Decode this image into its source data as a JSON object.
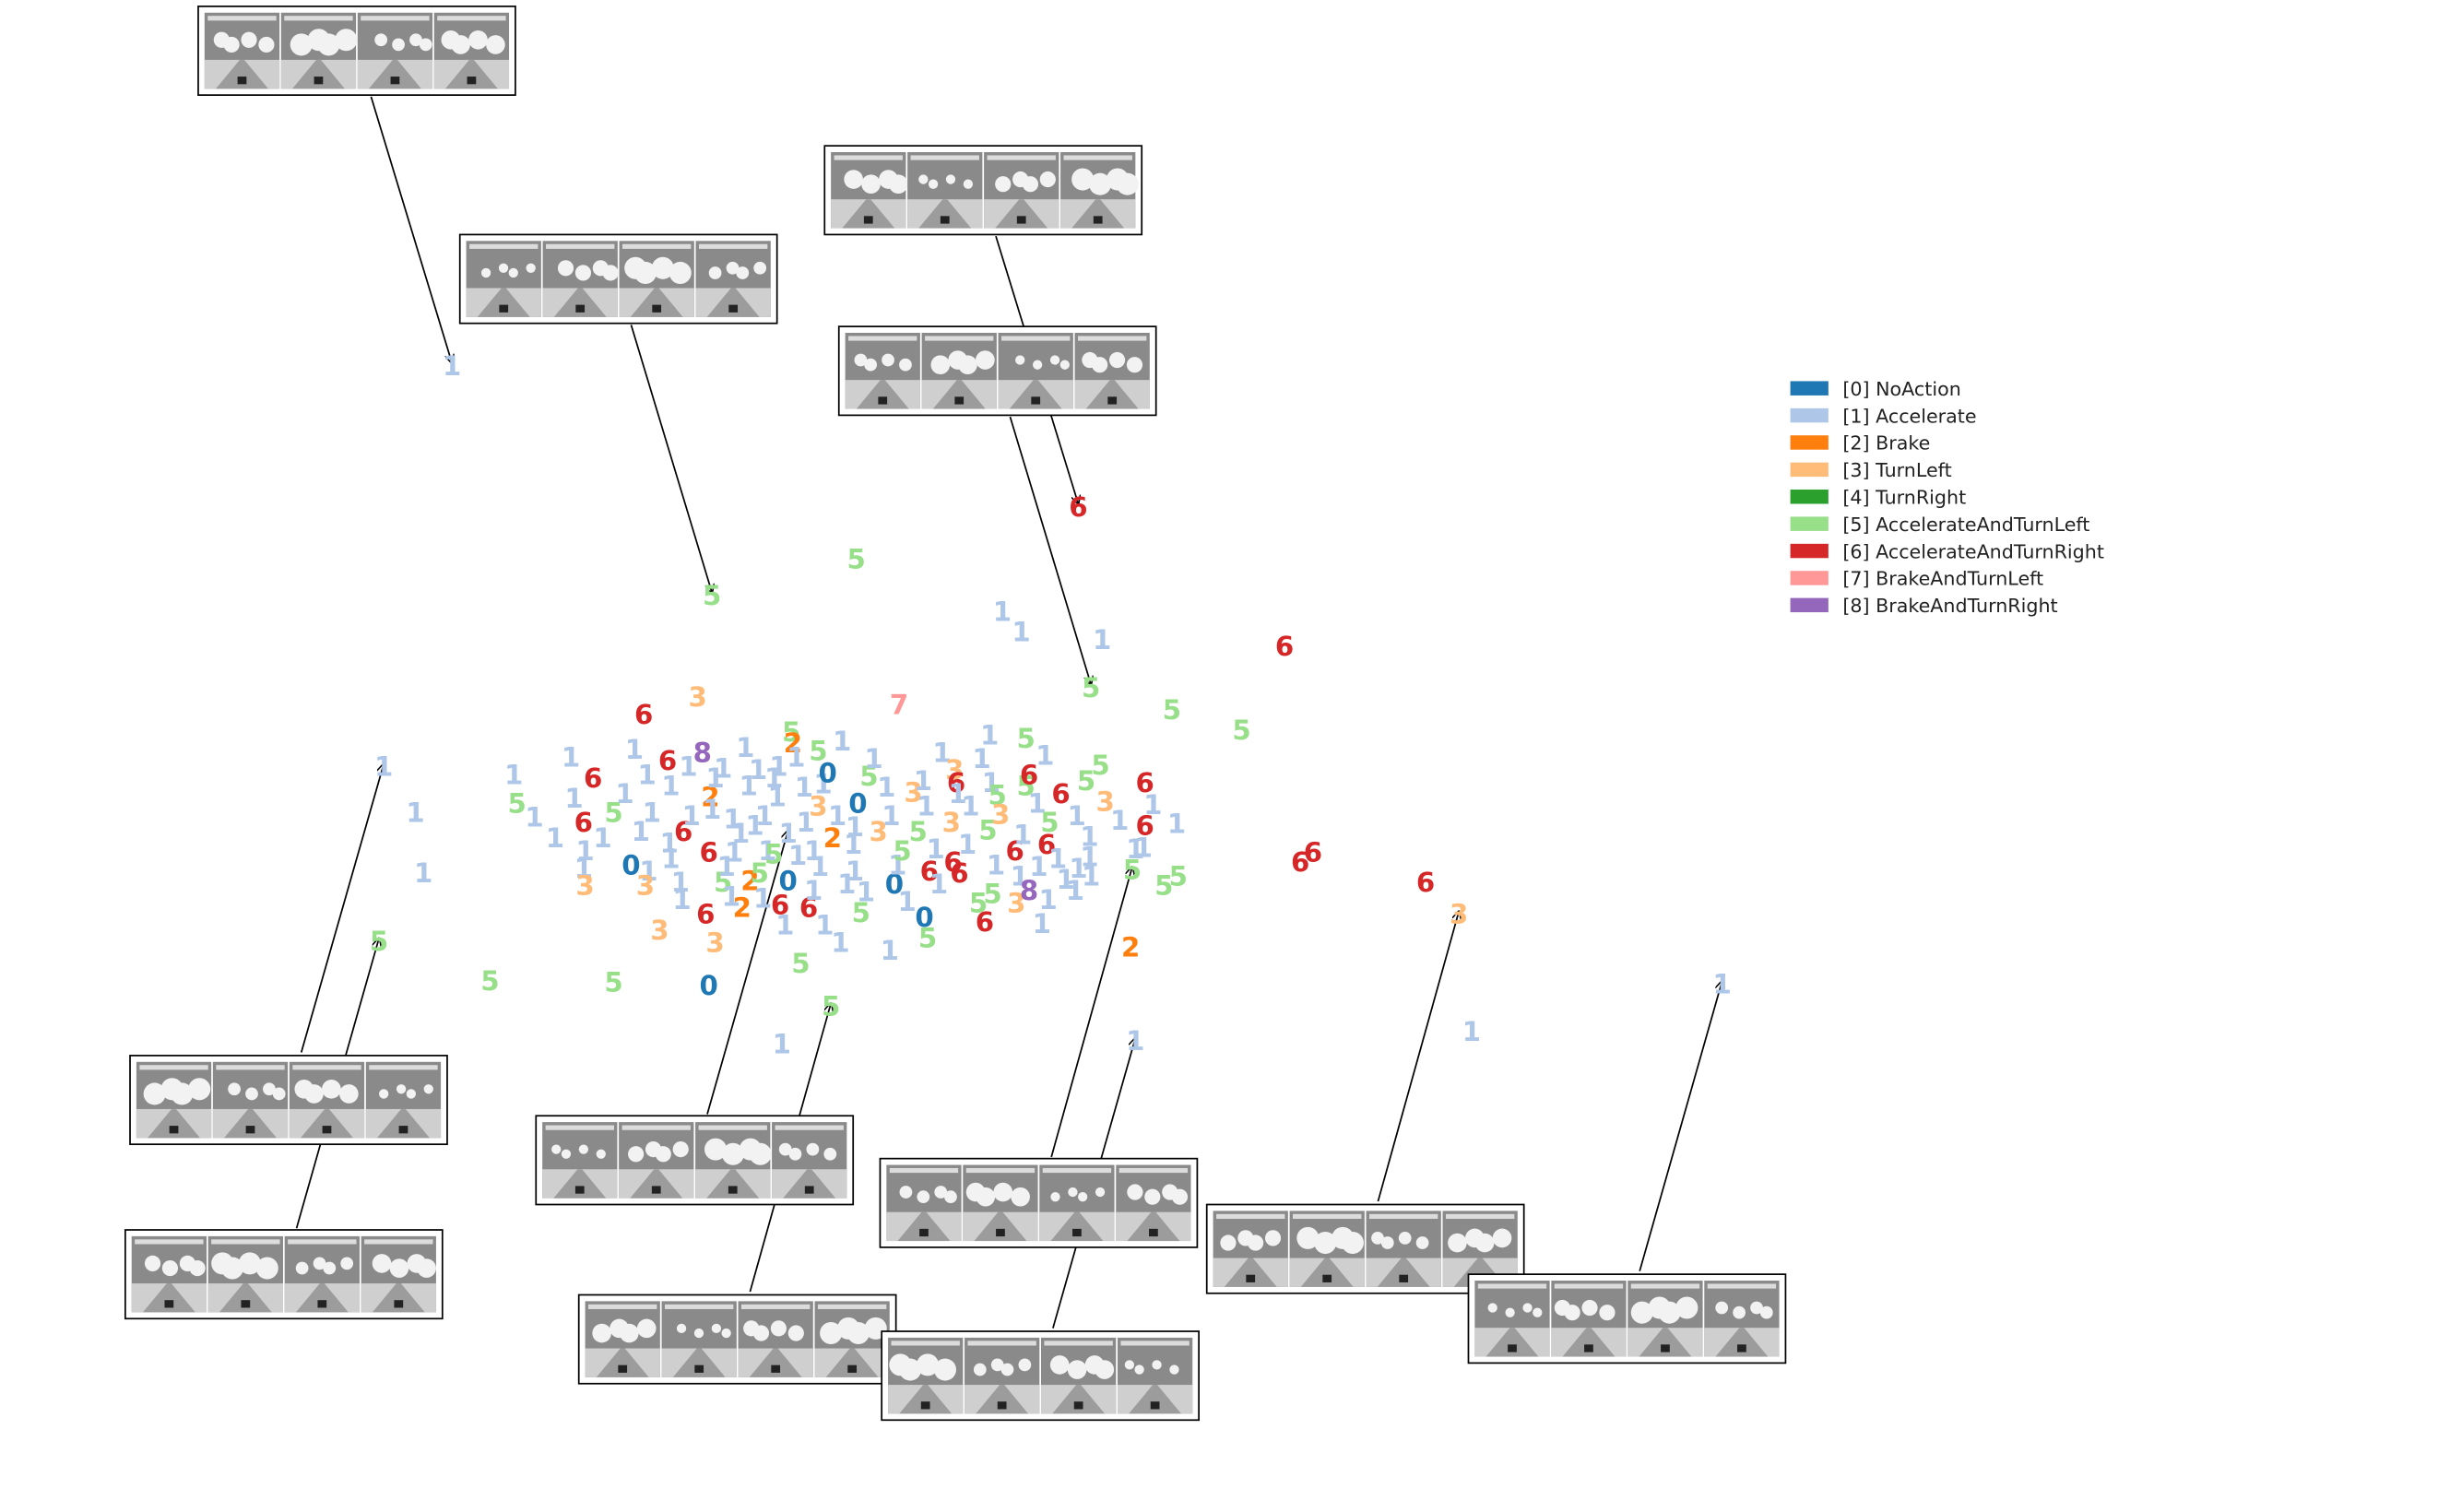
{
  "chart_data": {
    "type": "scatter",
    "title": "",
    "xlabel": "",
    "ylabel": "",
    "grid": false,
    "axes_visible": false,
    "legend_position": "right",
    "classes": [
      {
        "id": 0,
        "label": "[0] NoAction",
        "color": "#1f77b4"
      },
      {
        "id": 1,
        "label": "[1] Accelerate",
        "color": "#aec7e8"
      },
      {
        "id": 2,
        "label": "[2] Brake",
        "color": "#ff7f0e"
      },
      {
        "id": 3,
        "label": "[3] TurnLeft",
        "color": "#ffbb78"
      },
      {
        "id": 4,
        "label": "[4] TurnRight",
        "color": "#2ca02c"
      },
      {
        "id": 5,
        "label": "[5] AccelerateAndTurnLeft",
        "color": "#98df8a"
      },
      {
        "id": 6,
        "label": "[6] AccelerateAndTurnRight",
        "color": "#d62728"
      },
      {
        "id": 7,
        "label": "[7] BrakeAndTurnLeft",
        "color": "#ff9896"
      },
      {
        "id": 8,
        "label": "[8] BrakeAndTurnRight",
        "color": "#9467bd"
      }
    ],
    "xlim": [
      0,
      1545
    ],
    "ylim": [
      0,
      954
    ],
    "points": [
      {
        "x": 285,
        "y": 232,
        "c": 1
      },
      {
        "x": 449,
        "y": 377,
        "c": 5
      },
      {
        "x": 540,
        "y": 354,
        "c": 5
      },
      {
        "x": 680,
        "y": 321,
        "c": 6
      },
      {
        "x": 632,
        "y": 387,
        "c": 1
      },
      {
        "x": 644,
        "y": 400,
        "c": 1
      },
      {
        "x": 695,
        "y": 405,
        "c": 1
      },
      {
        "x": 810,
        "y": 409,
        "c": 6
      },
      {
        "x": 688,
        "y": 435,
        "c": 5
      },
      {
        "x": 739,
        "y": 449,
        "c": 5
      },
      {
        "x": 783,
        "y": 462,
        "c": 5
      },
      {
        "x": 567,
        "y": 446,
        "c": 7
      },
      {
        "x": 406,
        "y": 452,
        "c": 6
      },
      {
        "x": 440,
        "y": 441,
        "c": 3
      },
      {
        "x": 242,
        "y": 485,
        "c": 1
      },
      {
        "x": 262,
        "y": 514,
        "c": 1
      },
      {
        "x": 267,
        "y": 552,
        "c": 1
      },
      {
        "x": 239,
        "y": 595,
        "c": 5
      },
      {
        "x": 309,
        "y": 620,
        "c": 5
      },
      {
        "x": 387,
        "y": 621,
        "c": 5
      },
      {
        "x": 447,
        "y": 623,
        "c": 0
      },
      {
        "x": 524,
        "y": 636,
        "c": 5
      },
      {
        "x": 493,
        "y": 660,
        "c": 1
      },
      {
        "x": 716,
        "y": 658,
        "c": 1
      },
      {
        "x": 713,
        "y": 599,
        "c": 2
      },
      {
        "x": 828,
        "y": 539,
        "c": 6
      },
      {
        "x": 820,
        "y": 545,
        "c": 6
      },
      {
        "x": 899,
        "y": 558,
        "c": 6
      },
      {
        "x": 920,
        "y": 578,
        "c": 3
      },
      {
        "x": 928,
        "y": 652,
        "c": 1
      },
      {
        "x": 1086,
        "y": 622,
        "c": 1
      },
      {
        "x": 324,
        "y": 490,
        "c": 1
      },
      {
        "x": 360,
        "y": 479,
        "c": 1
      },
      {
        "x": 374,
        "y": 492,
        "c": 6
      },
      {
        "x": 326,
        "y": 508,
        "c": 5
      },
      {
        "x": 337,
        "y": 517,
        "c": 1
      },
      {
        "x": 350,
        "y": 530,
        "c": 1
      },
      {
        "x": 362,
        "y": 505,
        "c": 1
      },
      {
        "x": 368,
        "y": 520,
        "c": 6
      },
      {
        "x": 369,
        "y": 538,
        "c": 1
      },
      {
        "x": 368,
        "y": 549,
        "c": 1
      },
      {
        "x": 369,
        "y": 560,
        "c": 3
      },
      {
        "x": 380,
        "y": 530,
        "c": 1
      },
      {
        "x": 387,
        "y": 514,
        "c": 5
      },
      {
        "x": 394,
        "y": 502,
        "c": 1
      },
      {
        "x": 400,
        "y": 474,
        "c": 1
      },
      {
        "x": 398,
        "y": 547,
        "c": 0
      },
      {
        "x": 404,
        "y": 526,
        "c": 1
      },
      {
        "x": 408,
        "y": 490,
        "c": 1
      },
      {
        "x": 409,
        "y": 551,
        "c": 1
      },
      {
        "x": 407,
        "y": 560,
        "c": 3
      },
      {
        "x": 411,
        "y": 514,
        "c": 1
      },
      {
        "x": 416,
        "y": 588,
        "c": 3
      },
      {
        "x": 421,
        "y": 481,
        "c": 6
      },
      {
        "x": 423,
        "y": 497,
        "c": 1
      },
      {
        "x": 422,
        "y": 533,
        "c": 1
      },
      {
        "x": 423,
        "y": 543,
        "c": 1
      },
      {
        "x": 429,
        "y": 558,
        "c": 1
      },
      {
        "x": 430,
        "y": 569,
        "c": 1
      },
      {
        "x": 431,
        "y": 526,
        "c": 6
      },
      {
        "x": 434,
        "y": 485,
        "c": 1
      },
      {
        "x": 436,
        "y": 516,
        "c": 1
      },
      {
        "x": 443,
        "y": 476,
        "c": 8
      },
      {
        "x": 445,
        "y": 578,
        "c": 6
      },
      {
        "x": 447,
        "y": 539,
        "c": 6
      },
      {
        "x": 448,
        "y": 504,
        "c": 2
      },
      {
        "x": 449,
        "y": 512,
        "c": 1
      },
      {
        "x": 451,
        "y": 492,
        "c": 1
      },
      {
        "x": 451,
        "y": 596,
        "c": 3
      },
      {
        "x": 456,
        "y": 486,
        "c": 1
      },
      {
        "x": 456,
        "y": 558,
        "c": 5
      },
      {
        "x": 458,
        "y": 548,
        "c": 1
      },
      {
        "x": 461,
        "y": 567,
        "c": 1
      },
      {
        "x": 462,
        "y": 518,
        "c": 1
      },
      {
        "x": 463,
        "y": 539,
        "c": 1
      },
      {
        "x": 467,
        "y": 527,
        "c": 1
      },
      {
        "x": 468,
        "y": 574,
        "c": 2
      },
      {
        "x": 470,
        "y": 473,
        "c": 1
      },
      {
        "x": 472,
        "y": 497,
        "c": 1
      },
      {
        "x": 473,
        "y": 557,
        "c": 2
      },
      {
        "x": 476,
        "y": 522,
        "c": 1
      },
      {
        "x": 478,
        "y": 487,
        "c": 1
      },
      {
        "x": 479,
        "y": 552,
        "c": 5
      },
      {
        "x": 481,
        "y": 568,
        "c": 1
      },
      {
        "x": 482,
        "y": 516,
        "c": 1
      },
      {
        "x": 484,
        "y": 538,
        "c": 1
      },
      {
        "x": 488,
        "y": 492,
        "c": 1
      },
      {
        "x": 488,
        "y": 540,
        "c": 5
      },
      {
        "x": 490,
        "y": 504,
        "c": 1
      },
      {
        "x": 491,
        "y": 485,
        "c": 1
      },
      {
        "x": 492,
        "y": 572,
        "c": 6
      },
      {
        "x": 495,
        "y": 585,
        "c": 1
      },
      {
        "x": 497,
        "y": 527,
        "c": 1
      },
      {
        "x": 497,
        "y": 557,
        "c": 0
      },
      {
        "x": 499,
        "y": 463,
        "c": 5
      },
      {
        "x": 500,
        "y": 470,
        "c": 2
      },
      {
        "x": 502,
        "y": 479,
        "c": 1
      },
      {
        "x": 503,
        "y": 541,
        "c": 1
      },
      {
        "x": 505,
        "y": 609,
        "c": 5
      },
      {
        "x": 507,
        "y": 498,
        "c": 1
      },
      {
        "x": 508,
        "y": 520,
        "c": 1
      },
      {
        "x": 510,
        "y": 574,
        "c": 6
      },
      {
        "x": 513,
        "y": 538,
        "c": 1
      },
      {
        "x": 513,
        "y": 563,
        "c": 1
      },
      {
        "x": 516,
        "y": 510,
        "c": 3
      },
      {
        "x": 516,
        "y": 475,
        "c": 5
      },
      {
        "x": 517,
        "y": 548,
        "c": 1
      },
      {
        "x": 519,
        "y": 496,
        "c": 1
      },
      {
        "x": 520,
        "y": 585,
        "c": 1
      },
      {
        "x": 522,
        "y": 489,
        "c": 0
      },
      {
        "x": 525,
        "y": 530,
        "c": 2
      },
      {
        "x": 528,
        "y": 516,
        "c": 1
      },
      {
        "x": 530,
        "y": 596,
        "c": 1
      },
      {
        "x": 531,
        "y": 469,
        "c": 1
      },
      {
        "x": 534,
        "y": 559,
        "c": 1
      },
      {
        "x": 538,
        "y": 534,
        "c": 1
      },
      {
        "x": 539,
        "y": 523,
        "c": 1
      },
      {
        "x": 539,
        "y": 551,
        "c": 1
      },
      {
        "x": 541,
        "y": 508,
        "c": 0
      },
      {
        "x": 543,
        "y": 577,
        "c": 5
      },
      {
        "x": 546,
        "y": 564,
        "c": 1
      },
      {
        "x": 548,
        "y": 491,
        "c": 5
      },
      {
        "x": 551,
        "y": 480,
        "c": 1
      },
      {
        "x": 554,
        "y": 526,
        "c": 3
      },
      {
        "x": 559,
        "y": 498,
        "c": 1
      },
      {
        "x": 561,
        "y": 601,
        "c": 1
      },
      {
        "x": 562,
        "y": 516,
        "c": 1
      },
      {
        "x": 564,
        "y": 559,
        "c": 0
      },
      {
        "x": 566,
        "y": 547,
        "c": 1
      },
      {
        "x": 569,
        "y": 538,
        "c": 5
      },
      {
        "x": 572,
        "y": 570,
        "c": 1
      },
      {
        "x": 576,
        "y": 501,
        "c": 3
      },
      {
        "x": 579,
        "y": 526,
        "c": 5
      },
      {
        "x": 582,
        "y": 494,
        "c": 1
      },
      {
        "x": 583,
        "y": 580,
        "c": 0
      },
      {
        "x": 584,
        "y": 510,
        "c": 1
      },
      {
        "x": 585,
        "y": 593,
        "c": 5
      },
      {
        "x": 586,
        "y": 551,
        "c": 6
      },
      {
        "x": 590,
        "y": 537,
        "c": 1
      },
      {
        "x": 592,
        "y": 559,
        "c": 1
      },
      {
        "x": 594,
        "y": 476,
        "c": 1
      },
      {
        "x": 600,
        "y": 520,
        "c": 3
      },
      {
        "x": 601,
        "y": 545,
        "c": 6
      },
      {
        "x": 602,
        "y": 487,
        "c": 3
      },
      {
        "x": 603,
        "y": 495,
        "c": 6
      },
      {
        "x": 604,
        "y": 502,
        "c": 1
      },
      {
        "x": 605,
        "y": 552,
        "c": 6
      },
      {
        "x": 610,
        "y": 534,
        "c": 1
      },
      {
        "x": 612,
        "y": 510,
        "c": 1
      },
      {
        "x": 617,
        "y": 571,
        "c": 5
      },
      {
        "x": 619,
        "y": 480,
        "c": 1
      },
      {
        "x": 621,
        "y": 583,
        "c": 6
      },
      {
        "x": 623,
        "y": 525,
        "c": 5
      },
      {
        "x": 624,
        "y": 465,
        "c": 1
      },
      {
        "x": 625,
        "y": 495,
        "c": 1
      },
      {
        "x": 626,
        "y": 565,
        "c": 5
      },
      {
        "x": 628,
        "y": 547,
        "c": 1
      },
      {
        "x": 629,
        "y": 503,
        "c": 5
      },
      {
        "x": 631,
        "y": 515,
        "c": 3
      },
      {
        "x": 640,
        "y": 538,
        "c": 6
      },
      {
        "x": 641,
        "y": 571,
        "c": 3
      },
      {
        "x": 643,
        "y": 554,
        "c": 1
      },
      {
        "x": 645,
        "y": 528,
        "c": 1
      },
      {
        "x": 647,
        "y": 467,
        "c": 5
      },
      {
        "x": 647,
        "y": 497,
        "c": 5
      },
      {
        "x": 649,
        "y": 490,
        "c": 6
      },
      {
        "x": 649,
        "y": 563,
        "c": 8
      },
      {
        "x": 654,
        "y": 508,
        "c": 1
      },
      {
        "x": 655,
        "y": 548,
        "c": 1
      },
      {
        "x": 657,
        "y": 584,
        "c": 1
      },
      {
        "x": 659,
        "y": 478,
        "c": 1
      },
      {
        "x": 660,
        "y": 534,
        "c": 6
      },
      {
        "x": 661,
        "y": 569,
        "c": 1
      },
      {
        "x": 662,
        "y": 520,
        "c": 5
      },
      {
        "x": 667,
        "y": 543,
        "c": 1
      },
      {
        "x": 669,
        "y": 502,
        "c": 6
      },
      {
        "x": 672,
        "y": 556,
        "c": 1
      },
      {
        "x": 678,
        "y": 563,
        "c": 1
      },
      {
        "x": 679,
        "y": 516,
        "c": 1
      },
      {
        "x": 680,
        "y": 549,
        "c": 1
      },
      {
        "x": 685,
        "y": 494,
        "c": 5
      },
      {
        "x": 687,
        "y": 529,
        "c": 1
      },
      {
        "x": 687,
        "y": 542,
        "c": 1
      },
      {
        "x": 688,
        "y": 554,
        "c": 1
      },
      {
        "x": 694,
        "y": 484,
        "c": 5
      },
      {
        "x": 697,
        "y": 507,
        "c": 3
      },
      {
        "x": 706,
        "y": 519,
        "c": 1
      },
      {
        "x": 714,
        "y": 550,
        "c": 5
      },
      {
        "x": 716,
        "y": 537,
        "c": 1
      },
      {
        "x": 721,
        "y": 536,
        "c": 1
      },
      {
        "x": 722,
        "y": 495,
        "c": 6
      },
      {
        "x": 722,
        "y": 522,
        "c": 6
      },
      {
        "x": 727,
        "y": 509,
        "c": 1
      },
      {
        "x": 734,
        "y": 560,
        "c": 5
      },
      {
        "x": 742,
        "y": 521,
        "c": 1
      },
      {
        "x": 743,
        "y": 554,
        "c": 5
      }
    ],
    "thumbnails": [
      {
        "frames": 4,
        "target": {
          "x": 285,
          "y": 232
        }
      },
      {
        "frames": 4,
        "target": {
          "x": 449,
          "y": 377
        }
      },
      {
        "frames": 4,
        "target": {
          "x": 680,
          "y": 321
        }
      },
      {
        "frames": 4,
        "target": {
          "x": 688,
          "y": 435
        }
      },
      {
        "frames": 4,
        "target": {
          "x": 242,
          "y": 485
        }
      },
      {
        "frames": 4,
        "target": {
          "x": 239,
          "y": 595
        }
      },
      {
        "frames": 4,
        "target": {
          "x": 497,
          "y": 527
        }
      },
      {
        "frames": 4,
        "target": {
          "x": 524,
          "y": 636
        }
      },
      {
        "frames": 4,
        "target": {
          "x": 714,
          "y": 550
        }
      },
      {
        "frames": 4,
        "target": {
          "x": 716,
          "y": 658
        }
      },
      {
        "frames": 4,
        "target": {
          "x": 920,
          "y": 578
        }
      },
      {
        "frames": 4,
        "target": {
          "x": 1086,
          "y": 622
        }
      }
    ]
  }
}
